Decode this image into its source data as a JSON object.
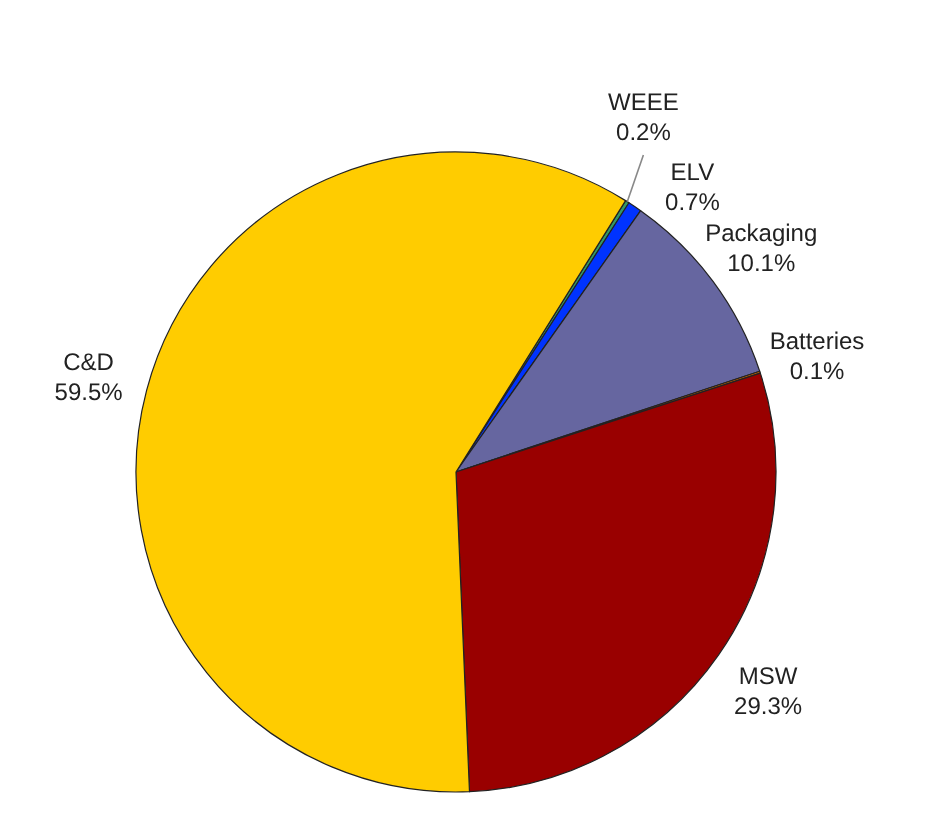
{
  "chart_data": {
    "type": "pie",
    "categories": [
      "WEEE",
      "ELV",
      "Packaging",
      "Batteries",
      "MSW",
      "C&D"
    ],
    "values": [
      0.2,
      0.7,
      10.1,
      0.1,
      29.3,
      59.5
    ],
    "colors": [
      "#339966",
      "#0033ff",
      "#6666a0",
      "#cc6600",
      "#990000",
      "#ffcc00"
    ],
    "value_labels": [
      "0.2%",
      "0.7%",
      "10.1%",
      "0.1%",
      "29.3%",
      "59.5%"
    ]
  }
}
